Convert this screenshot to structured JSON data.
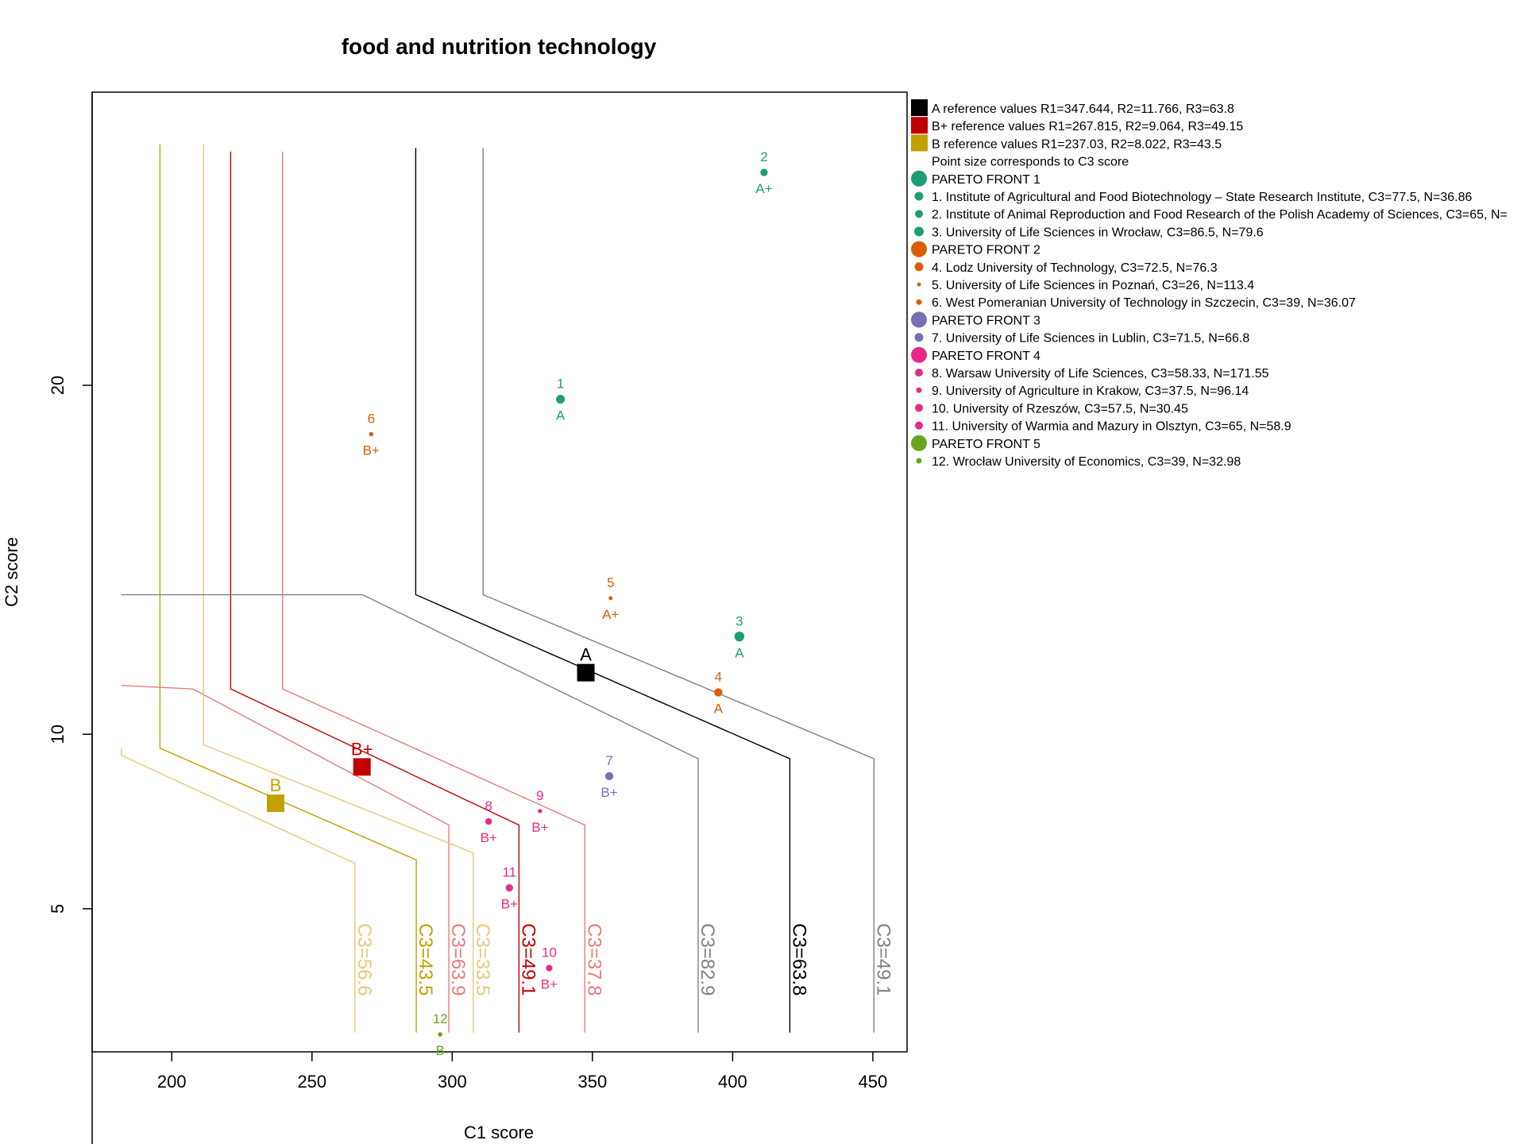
{
  "chart_data": {
    "type": "scatter",
    "title": "food and nutrition technology",
    "xlabel": "C1 score",
    "ylabel": "C2 score",
    "xlim": [
      171.6,
      462.2
    ],
    "ylim": [
      0.9,
      28.4
    ],
    "x_ticks": [
      200,
      250,
      300,
      350,
      400,
      450
    ],
    "y_ticks": [
      5,
      10,
      20
    ],
    "grid": false,
    "legend_placement": "right",
    "colors": {
      "A": "#000000",
      "A_grey": "#808080",
      "Bplus": "#c00000",
      "Bplus_light": "#e87b7b",
      "B": "#c2a000",
      "B_light": "#e6c97a",
      "front1": "#1b9e77",
      "front2": "#d95f02",
      "front3": "#7570b3",
      "front4": "#e7298a",
      "front5": "#66a61e"
    },
    "reference_points": [
      {
        "label": "A",
        "x": 347.644,
        "y": 11.766,
        "color": "#000000"
      },
      {
        "label": "B+",
        "x": 267.815,
        "y": 9.064,
        "color": "#c00000"
      },
      {
        "label": "B",
        "x": 237.03,
        "y": 8.022,
        "color": "#c2a000"
      }
    ],
    "points": [
      {
        "id": "1",
        "cat": "A",
        "x": 338.6,
        "y": 19.6,
        "c3": 77.5,
        "front": 1,
        "color": "#1b9e77"
      },
      {
        "id": "2",
        "cat": "A+",
        "x": 411.2,
        "y": 26.1,
        "c3": 65,
        "front": 1,
        "color": "#1b9e77"
      },
      {
        "id": "3",
        "cat": "A",
        "x": 402.4,
        "y": 12.8,
        "c3": 86.5,
        "front": 1,
        "color": "#1b9e77"
      },
      {
        "id": "4",
        "cat": "A",
        "x": 394.9,
        "y": 11.2,
        "c3": 72.5,
        "front": 2,
        "color": "#d95f02"
      },
      {
        "id": "5",
        "cat": "A+",
        "x": 356.5,
        "y": 13.9,
        "c3": 26,
        "front": 2,
        "color": "#d95f02"
      },
      {
        "id": "6",
        "cat": "B+",
        "x": 271.1,
        "y": 18.6,
        "c3": 39,
        "front": 2,
        "color": "#d95f02"
      },
      {
        "id": "7",
        "cat": "B+",
        "x": 356.0,
        "y": 8.8,
        "c3": 71.5,
        "front": 3,
        "color": "#7570b3"
      },
      {
        "id": "8",
        "cat": "B+",
        "x": 313.0,
        "y": 7.5,
        "c3": 58.33,
        "front": 4,
        "color": "#e7298a"
      },
      {
        "id": "9",
        "cat": "B+",
        "x": 331.3,
        "y": 7.8,
        "c3": 37.5,
        "front": 4,
        "color": "#e7298a"
      },
      {
        "id": "10",
        "cat": "B+",
        "x": 334.6,
        "y": 3.3,
        "c3": 57.5,
        "front": 4,
        "color": "#e7298a"
      },
      {
        "id": "11",
        "cat": "B+",
        "x": 320.4,
        "y": 5.6,
        "c3": 65,
        "front": 4,
        "color": "#e7298a"
      },
      {
        "id": "12",
        "cat": "B",
        "x": 295.7,
        "y": 1.4,
        "c3": 39,
        "front": 5,
        "color": "#66a61e"
      }
    ],
    "contours": [
      {
        "label": "C3=56.6",
        "color": "#e6c97a",
        "x_left": 182.0,
        "x_right": 265.3,
        "y_top": 9.4,
        "y_bottom": 6.3,
        "y_plateau": 9.6,
        "x_plateau_end": 182.0
      },
      {
        "label": "C3=43.5",
        "color": "#c2a000",
        "x_left": 195.8,
        "x_right": 287.2,
        "y_top": 9.6,
        "y_bottom": 6.4,
        "y_vert_top": 26.9
      },
      {
        "label": "C3=63.9",
        "color": "#e87b7b",
        "x_left": 182.0,
        "x_right": 298.8,
        "y_top": 11.3,
        "y_bottom": 7.4,
        "y_plateau": 11.4,
        "x_plateau_end": 207.5
      },
      {
        "label": "C3=33.5",
        "color": "#e6c97a",
        "x_left": 211.3,
        "x_right": 307.5,
        "y_top": 9.7,
        "y_bottom": 6.6,
        "y_vert_top": 26.9
      },
      {
        "label": "C3=49.1",
        "color": "#c00000",
        "x_left": 221.0,
        "x_right": 323.8,
        "y_top": 11.3,
        "y_bottom": 7.4,
        "y_vert_top": 26.7
      },
      {
        "label": "C3=37.8",
        "color": "#e87b7b",
        "x_left": 239.5,
        "x_right": 347.3,
        "y_top": 11.3,
        "y_bottom": 7.4,
        "y_vert_top": 26.7
      },
      {
        "label": "C3=82.9",
        "color": "#808080",
        "x_left": 182.0,
        "x_right": 387.7,
        "y_top": 14.0,
        "y_bottom": 9.3,
        "y_plateau": 14.0,
        "x_plateau_end": 268.0
      },
      {
        "label": "C3=63.8",
        "color": "#000000",
        "x_left": 287.0,
        "x_right": 420.4,
        "y_top": 14.0,
        "y_bottom": 9.3,
        "y_vert_top": 26.8
      },
      {
        "label": "C3=49.1",
        "color": "#808080",
        "x_left": 311.0,
        "x_right": 450.4,
        "y_top": 14.0,
        "y_bottom": 9.3,
        "y_vert_top": 26.8
      }
    ],
    "legend": [
      {
        "text": "A reference values R1=347.644, R2=11.766, R3=63.8",
        "marker": "square",
        "color": "#000000"
      },
      {
        "text": "B+ reference values R1=267.815, R2=9.064, R3=49.15",
        "marker": "square",
        "color": "#c00000"
      },
      {
        "text": "B reference values R1=237.03, R2=8.022, R3=43.5",
        "marker": "square",
        "color": "#c2a000"
      },
      {
        "text": "Point size corresponds to C3 score",
        "marker": "none",
        "color": ""
      },
      {
        "text": "PARETO FRONT 1",
        "marker": "big",
        "color": "#1b9e77"
      },
      {
        "text": "1. Institute of Agricultural and Food Biotechnology – State Research Institute, C3=77.5, N=36.86",
        "marker": "small",
        "color": "#1b9e77",
        "size": 5.5
      },
      {
        "text": "2. Institute of Animal Reproduction and Food Research of the Polish Academy of Sciences, C3=65, N=",
        "marker": "small",
        "color": "#1b9e77",
        "size": 5
      },
      {
        "text": "3. University of Life Sciences in Wrocław, C3=86.5, N=79.6",
        "marker": "small",
        "color": "#1b9e77",
        "size": 6
      },
      {
        "text": "PARETO FRONT 2",
        "marker": "big",
        "color": "#d95f02"
      },
      {
        "text": "4. Lodz University of Technology, C3=72.5, N=76.3",
        "marker": "small",
        "color": "#d95f02",
        "size": 5.5
      },
      {
        "text": "5. University of Life Sciences in Poznań, C3=26, N=113.4",
        "marker": "small",
        "color": "#d95f02",
        "size": 2.5
      },
      {
        "text": "6. West Pomeranian University of Technology in Szczecin, C3=39, N=36.07",
        "marker": "small",
        "color": "#d95f02",
        "size": 3.5
      },
      {
        "text": "PARETO FRONT 3",
        "marker": "big",
        "color": "#7570b3"
      },
      {
        "text": "7. University of Life Sciences in Lublin, C3=71.5, N=66.8",
        "marker": "small",
        "color": "#7570b3",
        "size": 5.5
      },
      {
        "text": "PARETO FRONT 4",
        "marker": "big",
        "color": "#e7298a"
      },
      {
        "text": "8. Warsaw University of Life Sciences, C3=58.33, N=171.55",
        "marker": "small",
        "color": "#e7298a",
        "size": 5
      },
      {
        "text": "9. University of Agriculture in Krakow, C3=37.5, N=96.14",
        "marker": "small",
        "color": "#e7298a",
        "size": 3.5
      },
      {
        "text": "10. University of Rzeszów, C3=57.5, N=30.45",
        "marker": "small",
        "color": "#e7298a",
        "size": 5
      },
      {
        "text": "11. University of Warmia and Mazury in Olsztyn, C3=65, N=58.9",
        "marker": "small",
        "color": "#e7298a",
        "size": 5
      },
      {
        "text": "PARETO FRONT 5",
        "marker": "big",
        "color": "#66a61e"
      },
      {
        "text": "12. Wrocław University of Economics, C3=39, N=32.98",
        "marker": "small",
        "color": "#66a61e",
        "size": 3.5
      }
    ]
  }
}
